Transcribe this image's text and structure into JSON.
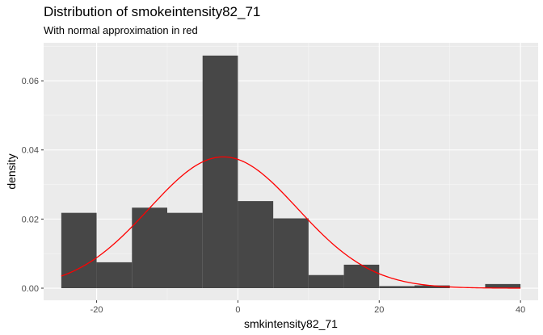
{
  "chart_data": {
    "type": "bar",
    "title": "Distribution of smokeintensity82_71",
    "subtitle": "With normal approximation in red",
    "xlabel": "smkintensity82_71",
    "ylabel": "density",
    "xlim": [
      -27.5,
      42.5
    ],
    "ylim": [
      -0.0035,
      0.071
    ],
    "x_ticks": [
      -20,
      0,
      20,
      40
    ],
    "x_tick_labels": [
      "-20",
      "0",
      "20",
      "40"
    ],
    "y_ticks": [
      0.0,
      0.02,
      0.04,
      0.06
    ],
    "y_tick_labels": [
      "0.00",
      "0.02",
      "0.04",
      "0.06"
    ],
    "bins": [
      {
        "x0": -25,
        "x1": -20,
        "density": 0.0218
      },
      {
        "x0": -20,
        "x1": -15,
        "density": 0.0075
      },
      {
        "x0": -15,
        "x1": -10,
        "density": 0.0233
      },
      {
        "x0": -10,
        "x1": -5,
        "density": 0.0218
      },
      {
        "x0": -5,
        "x1": 0,
        "density": 0.0673
      },
      {
        "x0": 0,
        "x1": 5,
        "density": 0.0252
      },
      {
        "x0": 5,
        "x1": 10,
        "density": 0.0202
      },
      {
        "x0": 10,
        "x1": 15,
        "density": 0.0038
      },
      {
        "x0": 15,
        "x1": 20,
        "density": 0.0068
      },
      {
        "x0": 20,
        "x1": 25,
        "density": 0.0006
      },
      {
        "x0": 25,
        "x1": 30,
        "density": 0.0008
      },
      {
        "x0": 30,
        "x1": 35,
        "density": 0.0
      },
      {
        "x0": 35,
        "x1": 40,
        "density": 0.0012
      }
    ],
    "normal_curve": {
      "mean": -2.06,
      "sd": 10.5,
      "x_range": [
        -25,
        40
      ]
    },
    "grid": true,
    "colors": {
      "panel": "#ebebeb",
      "grid_major": "#ffffff",
      "bars": "#474747",
      "curve": "#ff0000"
    }
  }
}
